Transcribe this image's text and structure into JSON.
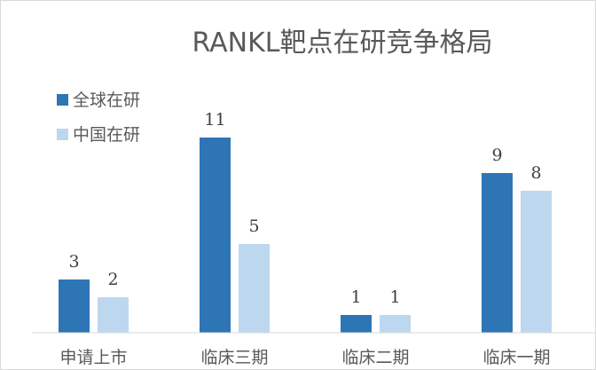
{
  "chart_data": {
    "type": "bar",
    "title": "RANKL靶点在研竞争格局",
    "categories": [
      "申请上市",
      "临床三期",
      "临床二期",
      "临床一期"
    ],
    "series": [
      {
        "name": "全球在研",
        "values": [
          3,
          11,
          1,
          9
        ],
        "color": "#2e75b6"
      },
      {
        "name": "中国在研",
        "values": [
          2,
          5,
          1,
          8
        ],
        "color": "#bdd7ee"
      }
    ],
    "ylim": [
      0,
      11
    ],
    "grid": false,
    "legend": "top-left"
  }
}
